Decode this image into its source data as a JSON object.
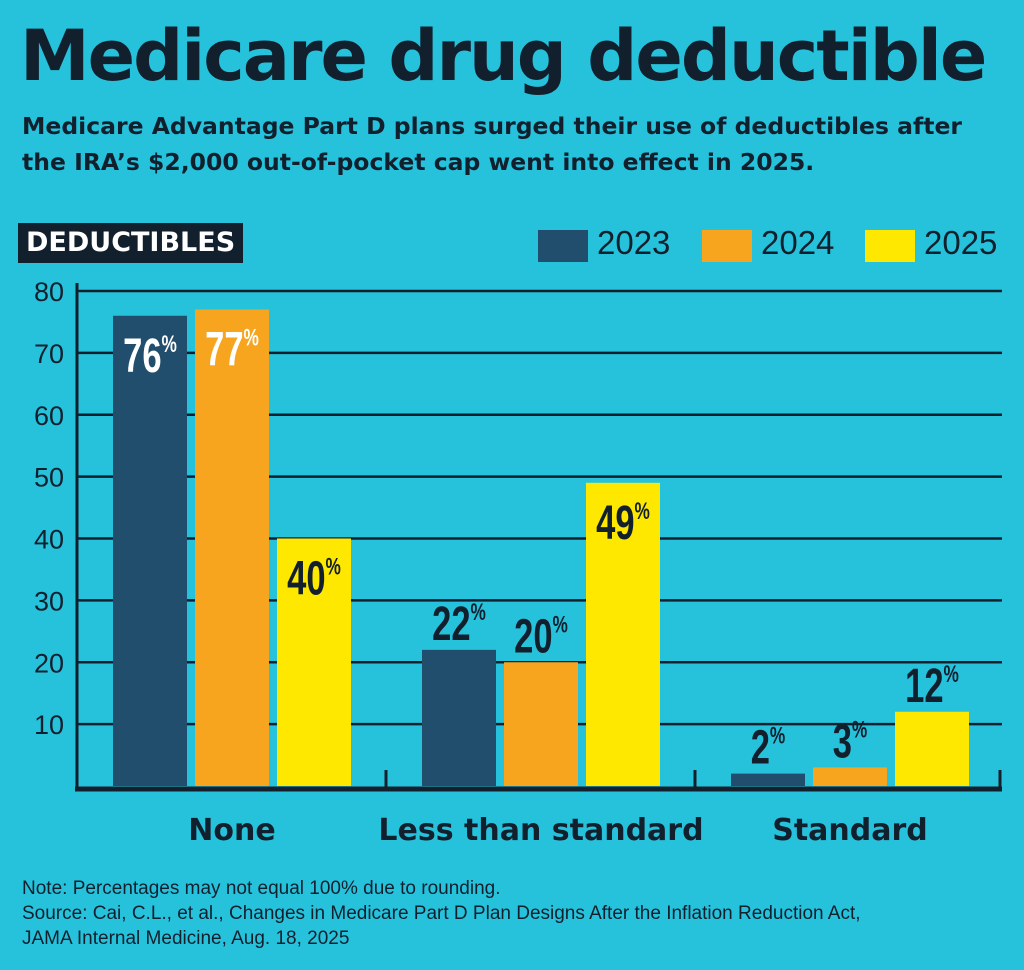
{
  "title": "Medicare drug deductible",
  "subtitle": "Medicare Advantage Part D plans surged their use of deductibles after the IRA’s $2,000 out-of-pocket cap went into effect in 2025.",
  "panel_label": "DEDUCTIBLES",
  "notes": {
    "note": "Note: Percentages may not equal 100% due to rounding.",
    "source_line1": "Source: Cai, C.L., et al., Changes in Medicare Part D Plan Designs After the Inflation Reduction Act,",
    "source_line2": "JAMA Internal Medicine, Aug. 18, 2025"
  },
  "chart_data": {
    "type": "bar",
    "categories": [
      "None",
      "Less than standard",
      "Standard"
    ],
    "series": [
      {
        "name": "2023",
        "values": [
          76,
          22,
          2
        ],
        "color": "#224e6e"
      },
      {
        "name": "2024",
        "values": [
          77,
          20,
          3
        ],
        "color": "#f7a51e"
      },
      {
        "name": "2025",
        "values": [
          40,
          49,
          12
        ],
        "color": "#ffe800"
      }
    ],
    "data_label_suffix": "%",
    "ylim": [
      0,
      80
    ],
    "yticks": [
      10,
      20,
      30,
      40,
      50,
      60,
      70,
      80
    ],
    "grid": true,
    "legend": "top-right",
    "colors": {
      "background": "#26c2dc",
      "text": "#12202e"
    }
  }
}
